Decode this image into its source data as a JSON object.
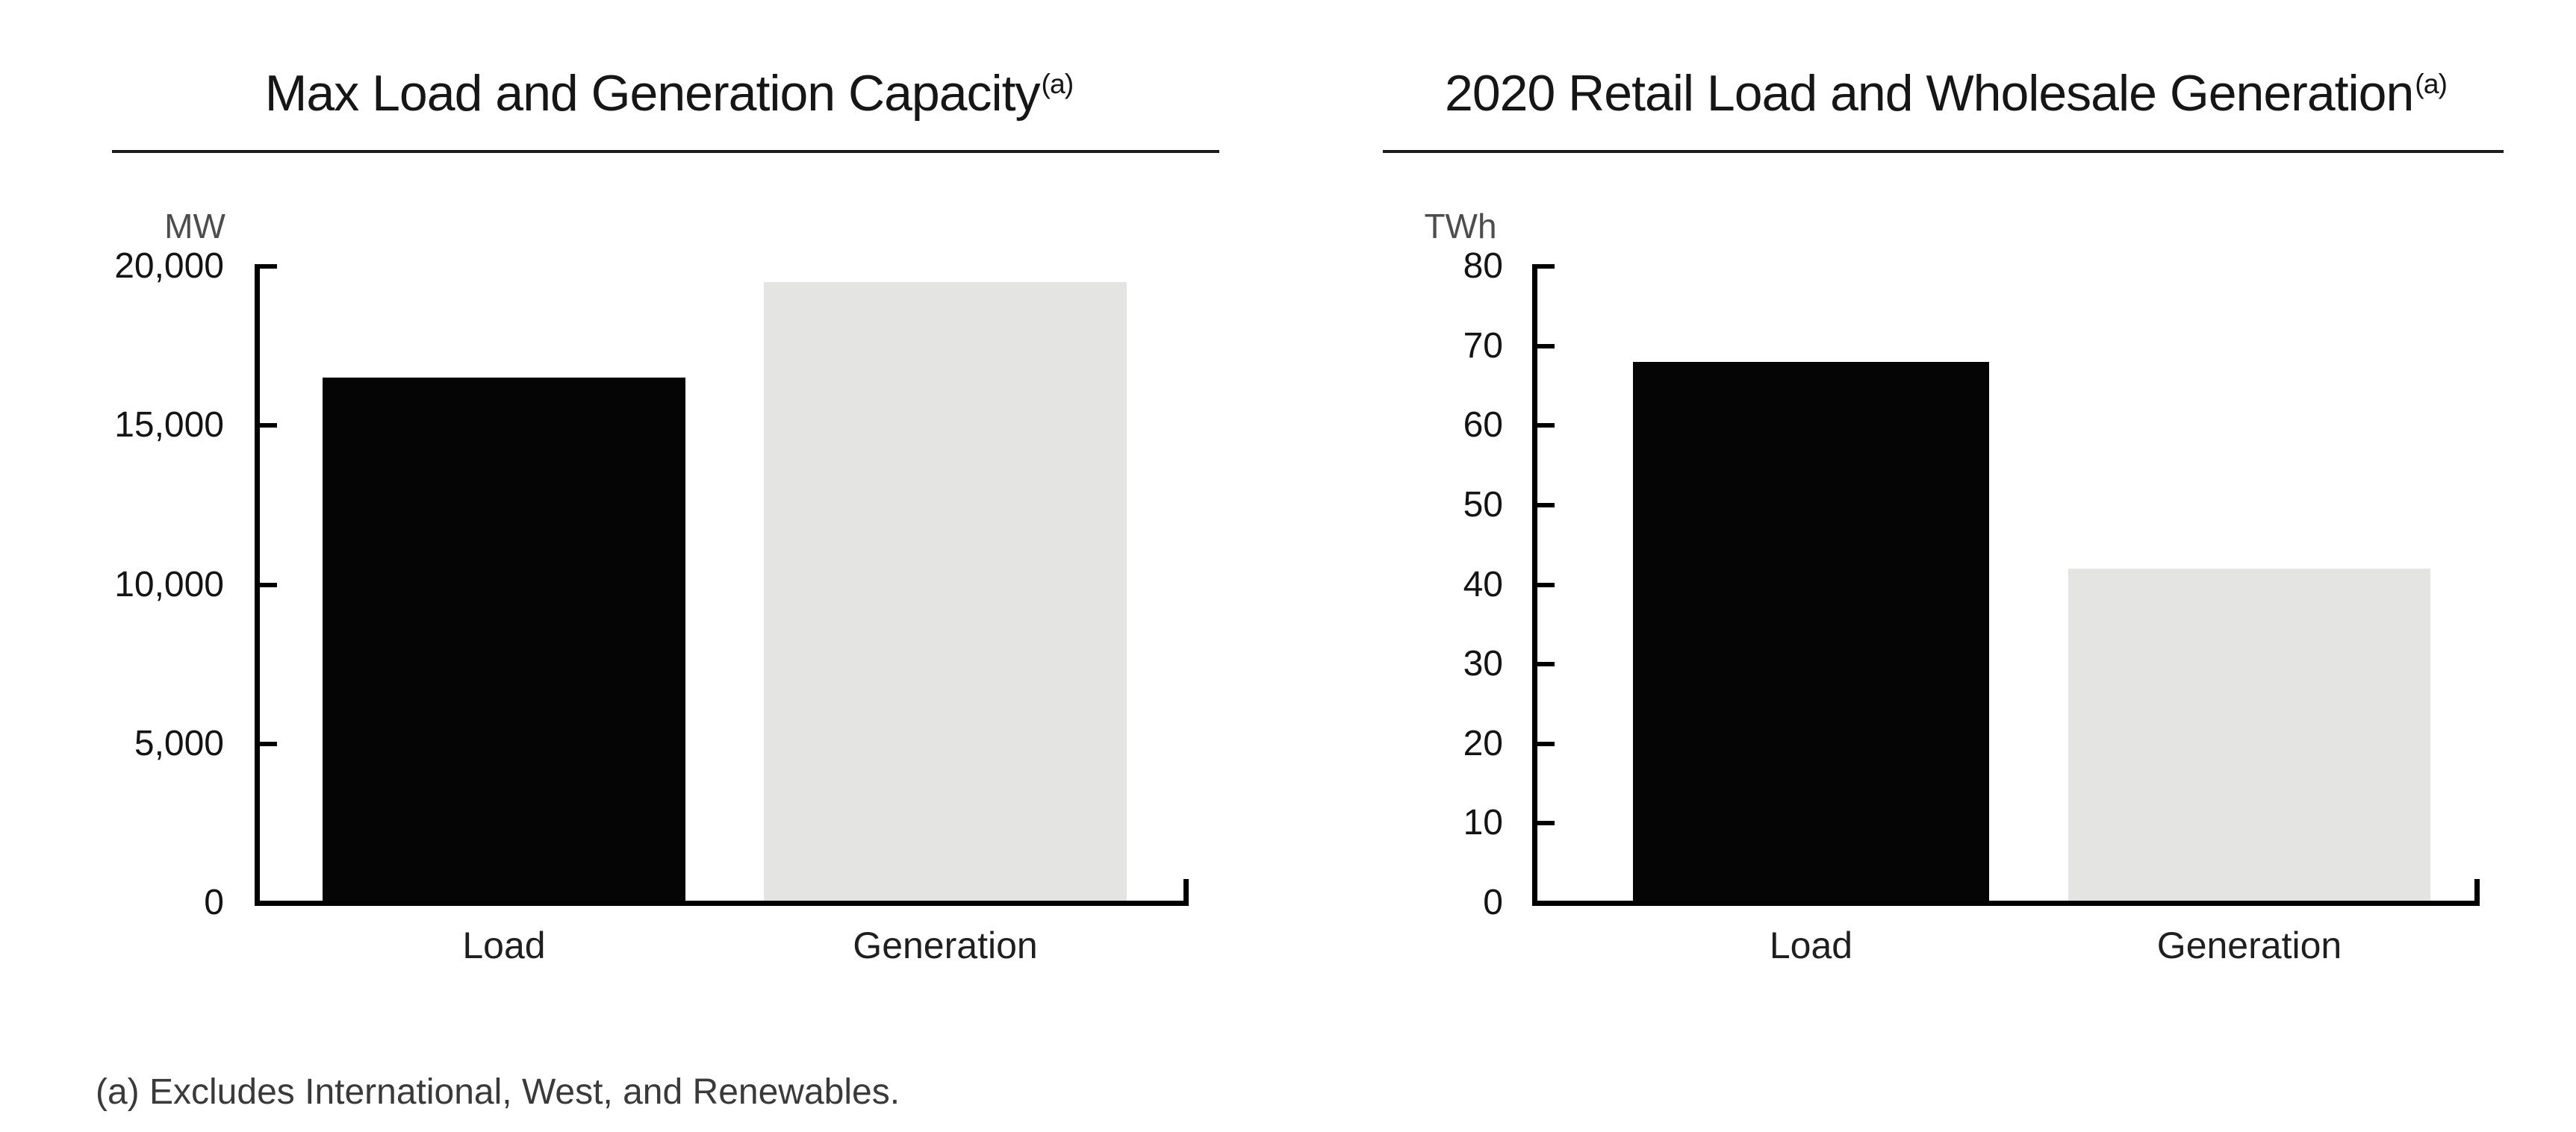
{
  "footnote": "(a) Excludes International, West, and Renewables.",
  "colors": {
    "bar_black": "#050505",
    "bar_grey": "#e4e4e3",
    "axis": "#000000",
    "rule": "#1d1d1d",
    "title_text": "#161616",
    "tick_text": "#141414",
    "unit_text": "#4d4d4d",
    "footnote_text": "#3a3a3a"
  },
  "chart_data": [
    {
      "type": "bar",
      "title": "Max Load and Generation Capacity",
      "title_superscript": "(a)",
      "unit": "MW",
      "categories": [
        "Load",
        "Generation"
      ],
      "values": [
        16500,
        19500
      ],
      "ylim": [
        0,
        20000
      ],
      "yticks": [
        {
          "value": 20000,
          "label": "20,000"
        },
        {
          "value": 15000,
          "label": "15,000"
        },
        {
          "value": 10000,
          "label": "10,000"
        },
        {
          "value": 5000,
          "label": "5,000"
        },
        {
          "value": 0,
          "label": "0"
        }
      ],
      "bar_colors": [
        "#050505",
        "#e4e4e3"
      ],
      "grid": false,
      "legend_position": "none"
    },
    {
      "type": "bar",
      "title": "2020 Retail Load and Wholesale Generation",
      "title_superscript": "(a)",
      "unit": "TWh",
      "categories": [
        "Load",
        "Generation"
      ],
      "values": [
        68,
        42
      ],
      "ylim": [
        0,
        80
      ],
      "yticks": [
        {
          "value": 80,
          "label": "80"
        },
        {
          "value": 70,
          "label": "70"
        },
        {
          "value": 60,
          "label": "60"
        },
        {
          "value": 50,
          "label": "50"
        },
        {
          "value": 40,
          "label": "40"
        },
        {
          "value": 30,
          "label": "30"
        },
        {
          "value": 20,
          "label": "20"
        },
        {
          "value": 10,
          "label": "10"
        },
        {
          "value": 0,
          "label": "0"
        }
      ],
      "bar_colors": [
        "#050505",
        "#e4e4e3"
      ],
      "grid": false,
      "legend_position": "none"
    }
  ]
}
